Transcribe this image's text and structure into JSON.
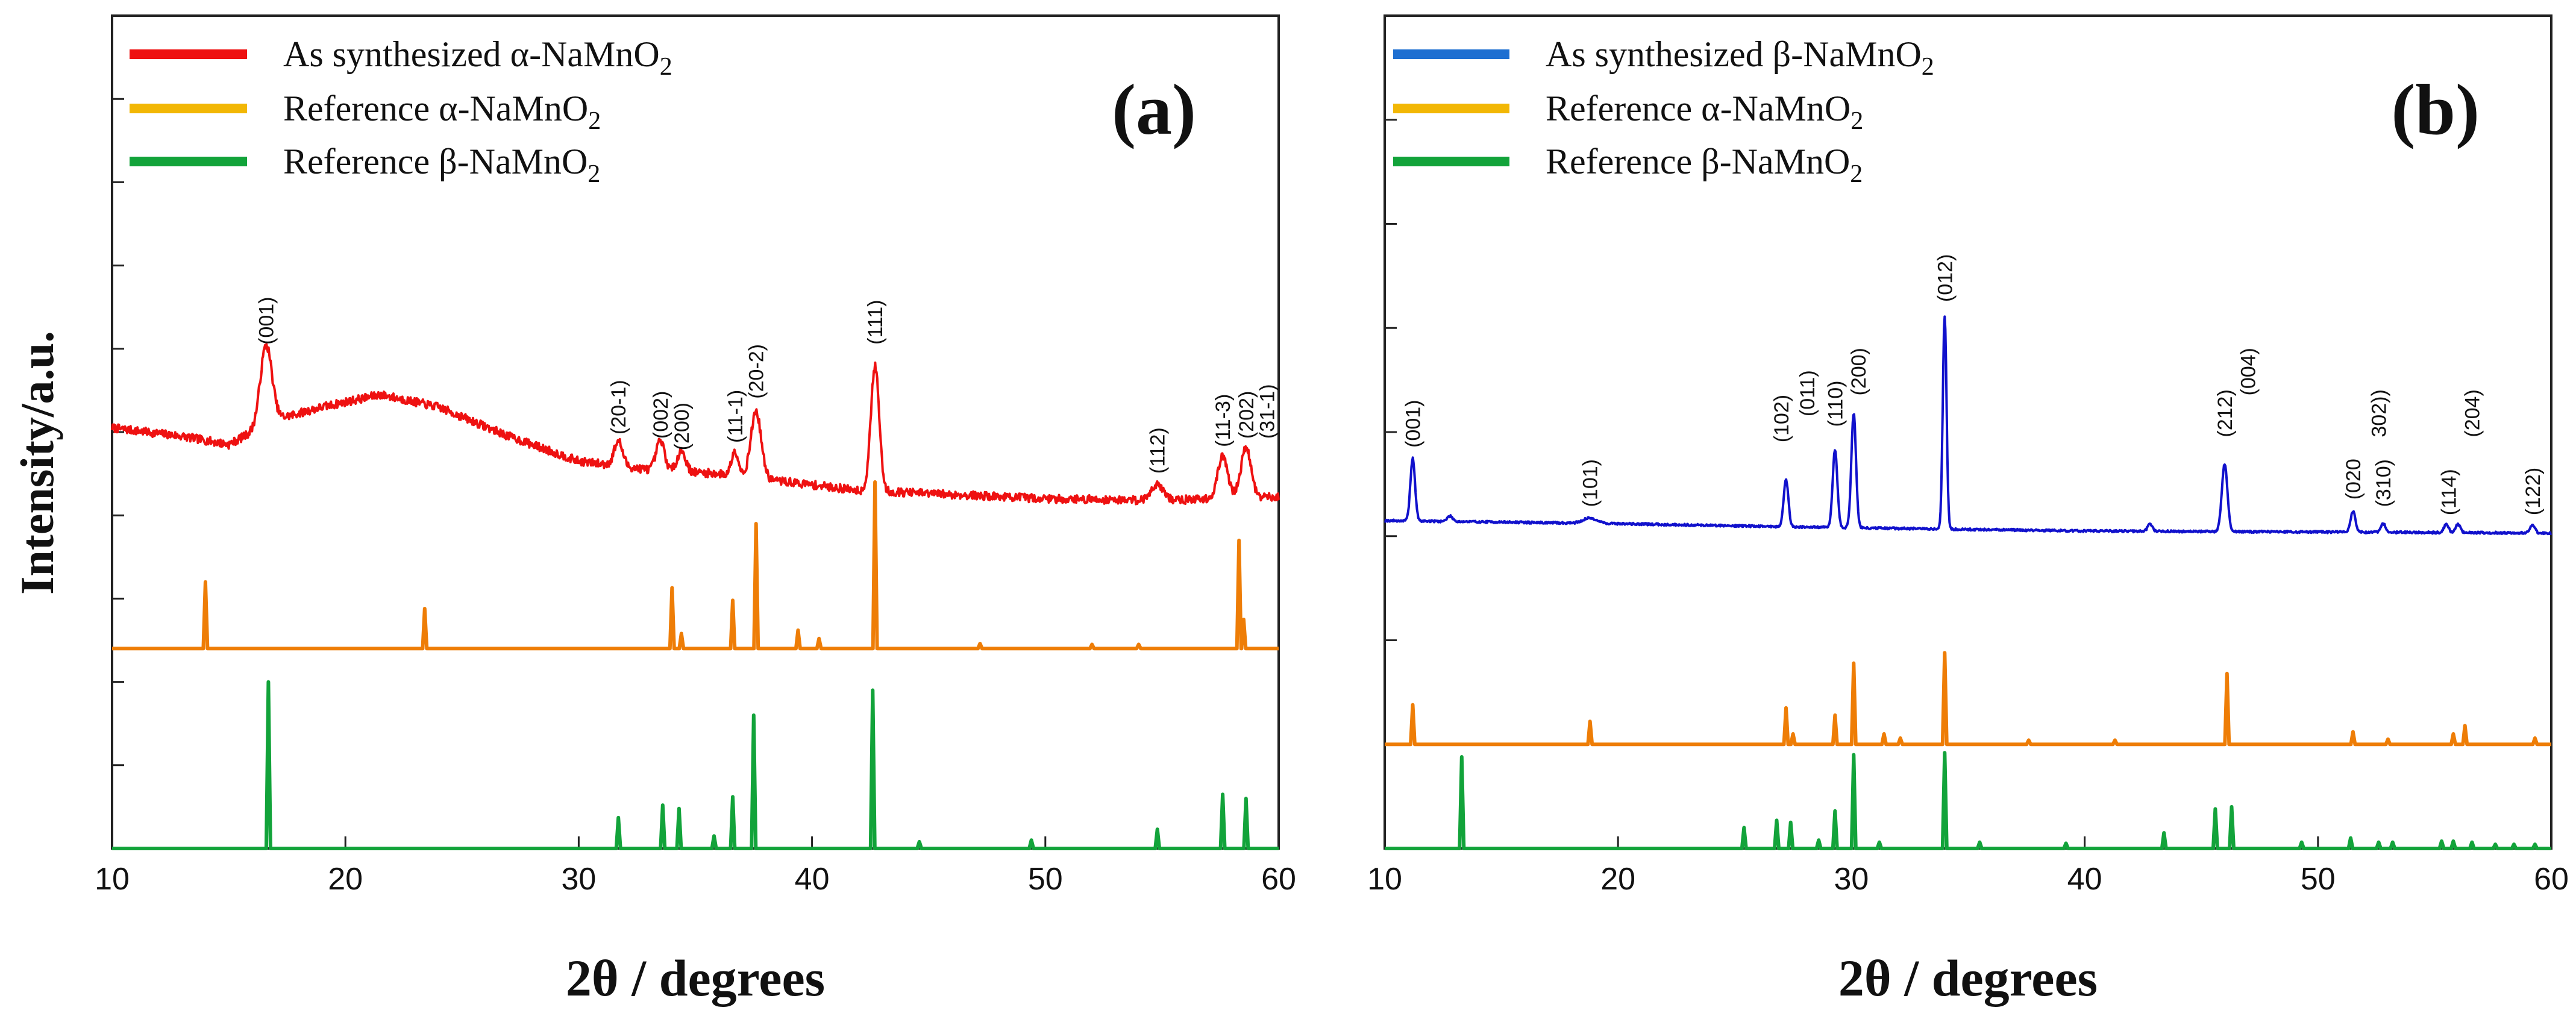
{
  "y_title": "Intensity/a.u.",
  "x_title": "2θ / degrees",
  "chart_data": [
    {
      "type": "line",
      "panel": "(a)",
      "xlabel": "2θ / degrees",
      "ylabel": "Intensity/a.u.",
      "xlim": [
        10,
        60
      ],
      "xticks": [
        10,
        20,
        30,
        40,
        50,
        60
      ],
      "ylim": [
        0,
        10
      ],
      "y_ticks_unlabeled": [
        0,
        1,
        2,
        3,
        4,
        5,
        6,
        7,
        8,
        9,
        10
      ],
      "legend": [
        {
          "prefix": "As synthesized ",
          "greek": "α",
          "formula_a": "-NaMnO",
          "sub": "2",
          "color": "#ee1111"
        },
        {
          "prefix": "Reference ",
          "greek": "α",
          "formula_a": "-NaMnO",
          "sub": "2",
          "color": "#f2b705"
        },
        {
          "prefix": "Reference ",
          "greek": "β",
          "formula_a": "-NaMnO",
          "sub": "2",
          "color": "#12a33a"
        }
      ],
      "series": [
        {
          "name": "As synthesized α-NaMnO2",
          "color": "#ee1111",
          "kind": "measured",
          "noise": 0.05,
          "baseline": [
            [
              10,
              5.05
            ],
            [
              13,
              4.95
            ],
            [
              15,
              4.85
            ],
            [
              17,
              5.15
            ],
            [
              19,
              5.3
            ],
            [
              21.5,
              5.45
            ],
            [
              24,
              5.3
            ],
            [
              27,
              4.95
            ],
            [
              30,
              4.65
            ],
            [
              33,
              4.55
            ],
            [
              36,
              4.5
            ],
            [
              39,
              4.4
            ],
            [
              42,
              4.3
            ],
            [
              46,
              4.25
            ],
            [
              50,
              4.2
            ],
            [
              55,
              4.18
            ],
            [
              60,
              4.22
            ]
          ],
          "peaks": [
            [
              16.6,
              0.95,
              0.25
            ],
            [
              31.7,
              0.3,
              0.18
            ],
            [
              33.5,
              0.35,
              0.18
            ],
            [
              34.4,
              0.25,
              0.18
            ],
            [
              36.7,
              0.3,
              0.15
            ],
            [
              37.6,
              0.8,
              0.22
            ],
            [
              42.7,
              1.5,
              0.18
            ],
            [
              54.8,
              0.2,
              0.25
            ],
            [
              57.6,
              0.5,
              0.22
            ],
            [
              58.6,
              0.6,
              0.22
            ]
          ]
        },
        {
          "name": "Reference α-NaMnO2",
          "color": "#ee7d06",
          "kind": "reference",
          "offset": 2.4,
          "peaks": [
            [
              14.0,
              0.8
            ],
            [
              23.4,
              0.48
            ],
            [
              34.0,
              0.73
            ],
            [
              34.4,
              0.18
            ],
            [
              36.6,
              0.58
            ],
            [
              37.6,
              1.5
            ],
            [
              39.4,
              0.22
            ],
            [
              40.3,
              0.12
            ],
            [
              42.7,
              2.0
            ],
            [
              47.2,
              0.06
            ],
            [
              52.0,
              0.05
            ],
            [
              54.0,
              0.05
            ],
            [
              58.3,
              1.3
            ],
            [
              58.5,
              0.35
            ]
          ]
        },
        {
          "name": "Reference β-NaMnO2",
          "color": "#12a33a",
          "kind": "reference",
          "offset": 0.0,
          "peaks": [
            [
              16.7,
              2.0
            ],
            [
              31.7,
              0.37
            ],
            [
              33.6,
              0.52
            ],
            [
              34.3,
              0.48
            ],
            [
              35.8,
              0.15
            ],
            [
              36.6,
              0.62
            ],
            [
              37.5,
              1.6
            ],
            [
              42.6,
              1.9
            ],
            [
              44.6,
              0.08
            ],
            [
              49.4,
              0.1
            ],
            [
              54.8,
              0.23
            ],
            [
              57.6,
              0.65
            ],
            [
              58.6,
              0.6
            ]
          ]
        }
      ],
      "annotations": [
        {
          "label": "(001)",
          "x": 16.6,
          "y": 6.05
        },
        {
          "label": "(20-1)",
          "x": 31.7,
          "y": 4.97
        },
        {
          "label": "(002)",
          "x": 33.5,
          "y": 4.92
        },
        {
          "label": "(200)",
          "x": 34.4,
          "y": 4.78
        },
        {
          "label": "(11-1)",
          "x": 36.7,
          "y": 4.87
        },
        {
          "label": "(20-2)",
          "x": 37.6,
          "y": 5.4
        },
        {
          "label": "(111)",
          "x": 42.7,
          "y": 6.05
        },
        {
          "label": "(112)",
          "x": 54.8,
          "y": 4.5
        },
        {
          "label": "(11-3)",
          "x": 57.6,
          "y": 4.82
        },
        {
          "label": "(202)",
          "x": 58.6,
          "y": 4.92
        },
        {
          "label": "(31-1)",
          "x": 59.5,
          "y": 4.92
        }
      ]
    },
    {
      "type": "line",
      "panel": "(b)",
      "xlabel": "2θ / degrees",
      "ylabel": "Intensity/a.u.",
      "xlim": [
        10,
        60
      ],
      "xticks": [
        10,
        20,
        30,
        40,
        50,
        60
      ],
      "ylim": [
        0,
        8
      ],
      "y_ticks_unlabeled": [
        0,
        1,
        2,
        3,
        4,
        5,
        6,
        7,
        8
      ],
      "legend": [
        {
          "prefix": "As synthesized ",
          "greek": "β",
          "formula_a": "-NaMnO",
          "sub": "2",
          "color": "#1e6fd1"
        },
        {
          "prefix": "Reference ",
          "greek": "α",
          "formula_a": "-NaMnO",
          "sub": "2",
          "color": "#f2b705"
        },
        {
          "prefix": "Reference ",
          "greek": "β",
          "formula_a": "-NaMnO",
          "sub": "2",
          "color": "#12a33a"
        }
      ],
      "series": [
        {
          "name": "As synthesized β-NaMnO2",
          "color": "#1111cc",
          "kind": "measured",
          "noise": 0.01,
          "baseline": [
            [
              10,
              3.15
            ],
            [
              20,
              3.12
            ],
            [
              30,
              3.08
            ],
            [
              40,
              3.05
            ],
            [
              50,
              3.04
            ],
            [
              60,
              3.03
            ]
          ],
          "peaks": [
            [
              11.2,
              0.6,
              0.1
            ],
            [
              12.8,
              0.05,
              0.12
            ],
            [
              18.8,
              0.05,
              0.3
            ],
            [
              27.2,
              0.45,
              0.1
            ],
            [
              29.3,
              0.75,
              0.1
            ],
            [
              30.1,
              1.1,
              0.1
            ],
            [
              34.0,
              2.05,
              0.08
            ],
            [
              42.8,
              0.07,
              0.1
            ],
            [
              46.0,
              0.65,
              0.12
            ],
            [
              51.5,
              0.2,
              0.1
            ],
            [
              52.8,
              0.08,
              0.1
            ],
            [
              55.5,
              0.08,
              0.1
            ],
            [
              56.0,
              0.08,
              0.1
            ],
            [
              59.2,
              0.08,
              0.1
            ]
          ]
        },
        {
          "name": "Reference α-NaMnO2",
          "color": "#ee7d06",
          "kind": "reference",
          "offset": 1.0,
          "peaks": [
            [
              11.2,
              0.38
            ],
            [
              18.8,
              0.22
            ],
            [
              27.2,
              0.35
            ],
            [
              27.5,
              0.1
            ],
            [
              29.3,
              0.28
            ],
            [
              30.1,
              0.78
            ],
            [
              31.4,
              0.1
            ],
            [
              32.1,
              0.06
            ],
            [
              34.0,
              0.88
            ],
            [
              37.6,
              0.04
            ],
            [
              41.3,
              0.04
            ],
            [
              46.1,
              0.68
            ],
            [
              51.5,
              0.12
            ],
            [
              53.0,
              0.05
            ],
            [
              55.8,
              0.1
            ],
            [
              56.3,
              0.18
            ],
            [
              59.3,
              0.06
            ]
          ]
        },
        {
          "name": "Reference β-NaMnO2",
          "color": "#12a33a",
          "kind": "reference",
          "offset": 0.0,
          "peaks": [
            [
              13.3,
              0.88
            ],
            [
              25.4,
              0.2
            ],
            [
              26.8,
              0.27
            ],
            [
              27.4,
              0.25
            ],
            [
              28.6,
              0.08
            ],
            [
              29.3,
              0.36
            ],
            [
              30.1,
              0.9
            ],
            [
              31.2,
              0.06
            ],
            [
              34.0,
              0.92
            ],
            [
              35.5,
              0.06
            ],
            [
              39.2,
              0.05
            ],
            [
              43.4,
              0.15
            ],
            [
              45.6,
              0.38
            ],
            [
              46.3,
              0.4
            ],
            [
              49.3,
              0.06
            ],
            [
              51.4,
              0.1
            ],
            [
              52.6,
              0.06
            ],
            [
              53.2,
              0.06
            ],
            [
              55.3,
              0.07
            ],
            [
              55.8,
              0.07
            ],
            [
              56.6,
              0.06
            ],
            [
              57.6,
              0.04
            ],
            [
              58.4,
              0.04
            ],
            [
              59.3,
              0.04
            ]
          ]
        }
      ],
      "annotations": [
        {
          "label": "(001)",
          "x": 11.2,
          "y": 3.85
        },
        {
          "label": "(101)",
          "x": 18.8,
          "y": 3.28
        },
        {
          "label": "(102)",
          "x": 27.0,
          "y": 3.9
        },
        {
          "label": "(011)",
          "x": 28.1,
          "y": 4.15
        },
        {
          "label": "(110)",
          "x": 29.3,
          "y": 4.05
        },
        {
          "label": "(200)",
          "x": 30.3,
          "y": 4.35
        },
        {
          "label": "(012)",
          "x": 34.0,
          "y": 5.25
        },
        {
          "label": "(212)",
          "x": 46.0,
          "y": 3.95
        },
        {
          "label": "(004)",
          "x": 47.0,
          "y": 4.35
        },
        {
          "label": "(020",
          "x": 51.5,
          "y": 3.35
        },
        {
          "label": "(310)",
          "x": 52.8,
          "y": 3.28
        },
        {
          "label": "302))",
          "x": 52.6,
          "y": 3.95
        },
        {
          "label": "(114)",
          "x": 55.6,
          "y": 3.2
        },
        {
          "label": "(204)",
          "x": 56.6,
          "y": 3.95
        },
        {
          "label": "(122)",
          "x": 59.2,
          "y": 3.2
        }
      ]
    }
  ]
}
